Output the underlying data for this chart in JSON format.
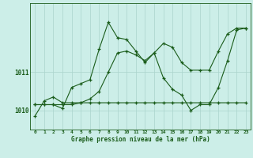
{
  "title": "Graphe pression niveau de la mer (hPa)",
  "background_color": "#cceee8",
  "line_color": "#1a5c1a",
  "grid_color": "#aad4cc",
  "axis_label_color": "#1a5c1a",
  "xlim": [
    -0.5,
    23.5
  ],
  "ylim": [
    1009.5,
    1012.8
  ],
  "yticks": [
    1010,
    1011
  ],
  "xticks": [
    0,
    1,
    2,
    3,
    4,
    5,
    6,
    7,
    8,
    9,
    10,
    11,
    12,
    13,
    14,
    15,
    16,
    17,
    18,
    19,
    20,
    21,
    22,
    23
  ],
  "series": [
    {
      "x": [
        0,
        1,
        2,
        3,
        4,
        5,
        6,
        7,
        8,
        9,
        10,
        11,
        12,
        13,
        14,
        15,
        16,
        17,
        18,
        19,
        20,
        21,
        22,
        23
      ],
      "y": [
        1009.85,
        1010.25,
        1010.35,
        1010.2,
        1010.2,
        1010.2,
        1010.2,
        1010.2,
        1010.2,
        1010.2,
        1010.2,
        1010.2,
        1010.2,
        1010.2,
        1010.2,
        1010.2,
        1010.2,
        1010.2,
        1010.2,
        1010.2,
        1010.2,
        1010.2,
        1010.2,
        1010.2
      ]
    },
    {
      "x": [
        0,
        1,
        2,
        3,
        4,
        5,
        6,
        7,
        8,
        9,
        10,
        11,
        12,
        13,
        14,
        15,
        16,
        17,
        18,
        19,
        20,
        21,
        22,
        23
      ],
      "y": [
        1010.15,
        1010.15,
        1010.15,
        1010.15,
        1010.15,
        1010.2,
        1010.3,
        1010.5,
        1011.0,
        1011.5,
        1011.55,
        1011.45,
        1011.3,
        1011.5,
        1011.75,
        1011.65,
        1011.25,
        1011.05,
        1011.05,
        1011.05,
        1011.55,
        1012.0,
        1012.15,
        1012.15
      ]
    },
    {
      "x": [
        0,
        1,
        2,
        3,
        4,
        5,
        6,
        7,
        8,
        9,
        10,
        11,
        12,
        13,
        14,
        15,
        16,
        17,
        18,
        19,
        20,
        21,
        22,
        23
      ],
      "y": [
        1010.15,
        1010.15,
        1010.15,
        1010.05,
        1010.6,
        1010.7,
        1010.8,
        1011.6,
        1012.3,
        1011.9,
        1011.85,
        1011.55,
        1011.25,
        1011.5,
        1010.85,
        1010.55,
        1010.4,
        1010.0,
        1010.15,
        1010.15,
        1010.6,
        1011.3,
        1012.1,
        1012.15
      ]
    }
  ]
}
